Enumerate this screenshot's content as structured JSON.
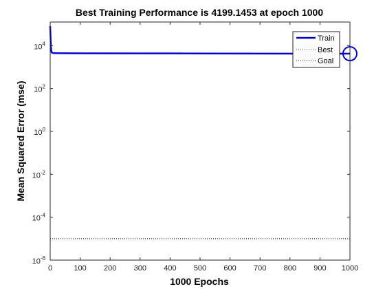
{
  "chart_data": {
    "type": "line",
    "title": "Best Training Performance is 4199.1453 at epoch 1000",
    "xlabel": "1000 Epochs",
    "ylabel": "Mean Squared Error  (mse)",
    "xlim": [
      0,
      1000
    ],
    "ylim_log10": [
      -6,
      5.1
    ],
    "y_scale": "log",
    "x_ticks": [
      "0",
      "100",
      "200",
      "300",
      "400",
      "500",
      "600",
      "700",
      "800",
      "900",
      "1000"
    ],
    "y_ticks": [
      {
        "base": "10",
        "exp": "-6"
      },
      {
        "base": "10",
        "exp": "-4"
      },
      {
        "base": "10",
        "exp": "-2"
      },
      {
        "base": "10",
        "exp": "0"
      },
      {
        "base": "10",
        "exp": "2"
      },
      {
        "base": "10",
        "exp": "4"
      }
    ],
    "grid": false,
    "legend_position": "top-right",
    "series": [
      {
        "name": "Train",
        "color": "#0000cc",
        "style": "solid",
        "x": [
          0,
          1,
          2,
          3,
          5,
          10,
          20,
          50,
          100,
          300,
          500,
          700,
          900,
          1000
        ],
        "y": [
          80000,
          30000,
          12000,
          6500,
          4800,
          4500,
          4450,
          4400,
          4380,
          4330,
          4300,
          4260,
          4220,
          4199.1453
        ]
      },
      {
        "name": "Best",
        "color": "#2c3e8f",
        "style": "dotted",
        "x": [
          1000,
          1000
        ],
        "y": [
          1e-06,
          125000
        ]
      },
      {
        "name": "Goal",
        "color": "#000000",
        "style": "dotted",
        "x": [
          0,
          1000
        ],
        "y": [
          1e-05,
          1e-05
        ]
      }
    ],
    "best_marker": {
      "x": 1000,
      "y": 4199.1453,
      "color": "#0000cc"
    }
  }
}
